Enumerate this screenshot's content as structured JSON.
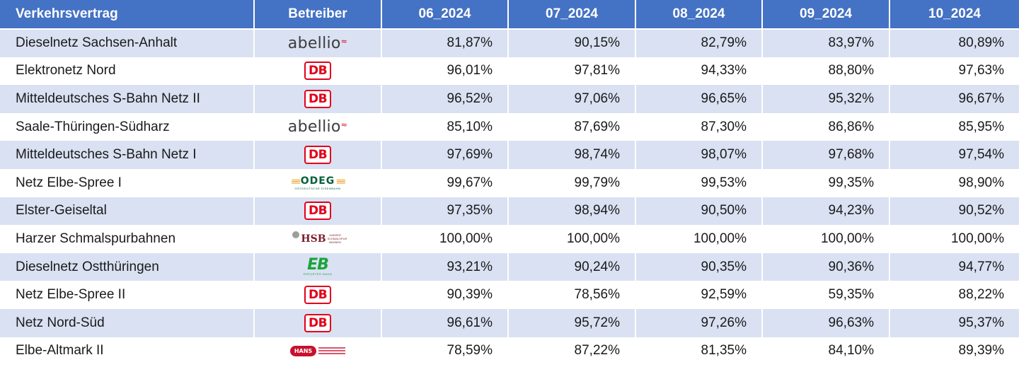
{
  "table": {
    "headers": [
      "Verkehrsvertrag",
      "Betreiber",
      "06_2024",
      "07_2024",
      "08_2024",
      "09_2024",
      "10_2024"
    ],
    "rows": [
      {
        "name": "Dieselnetz Sachsen-Anhalt",
        "operator_logo": "abellio",
        "values": [
          "81,87%",
          "90,15%",
          "82,79%",
          "83,97%",
          "80,89%"
        ]
      },
      {
        "name": "Elektronetz Nord",
        "operator_logo": "db",
        "values": [
          "96,01%",
          "97,81%",
          "94,33%",
          "88,80%",
          "97,63%"
        ]
      },
      {
        "name": "Mitteldeutsches S-Bahn Netz II",
        "operator_logo": "db",
        "values": [
          "96,52%",
          "97,06%",
          "96,65%",
          "95,32%",
          "96,67%"
        ]
      },
      {
        "name": "Saale-Thüringen-Südharz",
        "operator_logo": "abellio",
        "values": [
          "85,10%",
          "87,69%",
          "87,30%",
          "86,86%",
          "85,95%"
        ]
      },
      {
        "name": "Mitteldeutsches S-Bahn Netz I",
        "operator_logo": "db",
        "values": [
          "97,69%",
          "98,74%",
          "98,07%",
          "97,68%",
          "97,54%"
        ]
      },
      {
        "name": "Netz Elbe-Spree I",
        "operator_logo": "odeg",
        "values": [
          "99,67%",
          "99,79%",
          "99,53%",
          "99,35%",
          "98,90%"
        ]
      },
      {
        "name": "Elster-Geiseltal",
        "operator_logo": "db",
        "values": [
          "97,35%",
          "98,94%",
          "90,50%",
          "94,23%",
          "90,52%"
        ]
      },
      {
        "name": "Harzer Schmalspurbahnen",
        "operator_logo": "hsb",
        "values": [
          "100,00%",
          "100,00%",
          "100,00%",
          "100,00%",
          "100,00%"
        ]
      },
      {
        "name": "Dieselnetz Ostthüringen",
        "operator_logo": "eb",
        "values": [
          "93,21%",
          "90,24%",
          "90,35%",
          "90,36%",
          "94,77%"
        ]
      },
      {
        "name": "Netz Elbe-Spree II",
        "operator_logo": "db",
        "values": [
          "90,39%",
          "78,56%",
          "92,59%",
          "59,35%",
          "88,22%"
        ]
      },
      {
        "name": "Netz Nord-Süd",
        "operator_logo": "db",
        "values": [
          "96,61%",
          "95,72%",
          "97,26%",
          "96,63%",
          "95,37%"
        ]
      },
      {
        "name": "Elbe-Altmark II",
        "operator_logo": "hans",
        "values": [
          "78,59%",
          "87,22%",
          "81,35%",
          "84,10%",
          "89,39%"
        ]
      }
    ]
  },
  "logos": {
    "db": {
      "text": "DB"
    },
    "abellio": {
      "text": "abellio"
    },
    "odeg": {
      "text": "ODEG",
      "subtext": "OSTDEUTSCHE EISENBAHN"
    },
    "hsb": {
      "text": "HSB",
      "subtext": "HARZER SCHMALSPUR BAHNEN"
    },
    "eb": {
      "text": "EB",
      "subtext": "ERFURTER BAHN"
    },
    "hans": {
      "text": "HANS"
    }
  },
  "colors": {
    "header_bg": "#4472c4",
    "header_text": "#ffffff",
    "band_row": "#d9e1f2",
    "plain_row": "#ffffff",
    "db_red": "#e2001a",
    "odeg_orange": "#f39200",
    "odeg_green": "#00613a",
    "hsb_red": "#7a1f2b",
    "eb_green": "#1aa33a",
    "hans_red": "#c8102e"
  }
}
